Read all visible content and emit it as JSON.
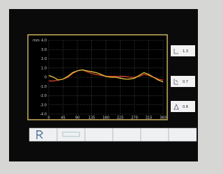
{
  "chart_data": {
    "type": "line",
    "y_unit": "mm",
    "x": [
      0,
      15,
      30,
      45,
      60,
      75,
      90,
      105,
      120,
      135,
      150,
      165,
      180,
      195,
      210,
      225,
      240,
      255,
      270,
      285,
      300,
      315,
      330,
      345,
      360
    ],
    "series": [
      {
        "color": "#d0402a",
        "values": [
          -0.4,
          -0.4,
          -0.3,
          -0.2,
          0,
          0.4,
          0.7,
          0.8,
          0.6,
          0.4,
          0.3,
          0.2,
          0.1,
          0.1,
          0.1,
          0.1,
          0.1,
          0,
          0,
          0.1,
          0.3,
          0.2,
          0,
          -0.2,
          -0.3
        ]
      },
      {
        "color": "#e8c23a",
        "values": [
          0.2,
          0,
          -0.3,
          -0.2,
          0.1,
          0.5,
          0.7,
          0.8,
          0.7,
          0.6,
          0.5,
          0.3,
          0.1,
          0,
          0,
          -0.1,
          -0.2,
          -0.2,
          -0.1,
          0.2,
          0.5,
          0.3,
          0,
          -0.3,
          -0.5
        ]
      }
    ],
    "xlim": [
      0,
      360
    ],
    "xticks": [
      0,
      45,
      90,
      135,
      180,
      225,
      270,
      315,
      360
    ],
    "ylim": [
      -4,
      4
    ],
    "yticks": [
      {
        "value": 4,
        "label": "4.0"
      },
      {
        "value": 3,
        "label": "3.0"
      },
      {
        "value": 2,
        "label": "2.0"
      },
      {
        "value": 1,
        "label": "1.0"
      },
      0,
      {
        "value": -1,
        "label": "-1.0"
      },
      {
        "value": -2,
        "label": "-2.0"
      },
      {
        "value": -3,
        "label": "-3.0"
      },
      {
        "value": -4,
        "label": "-4.0"
      }
    ],
    "grid": true
  },
  "side_buttons": [
    "1.3",
    "0.7",
    "0.8"
  ]
}
